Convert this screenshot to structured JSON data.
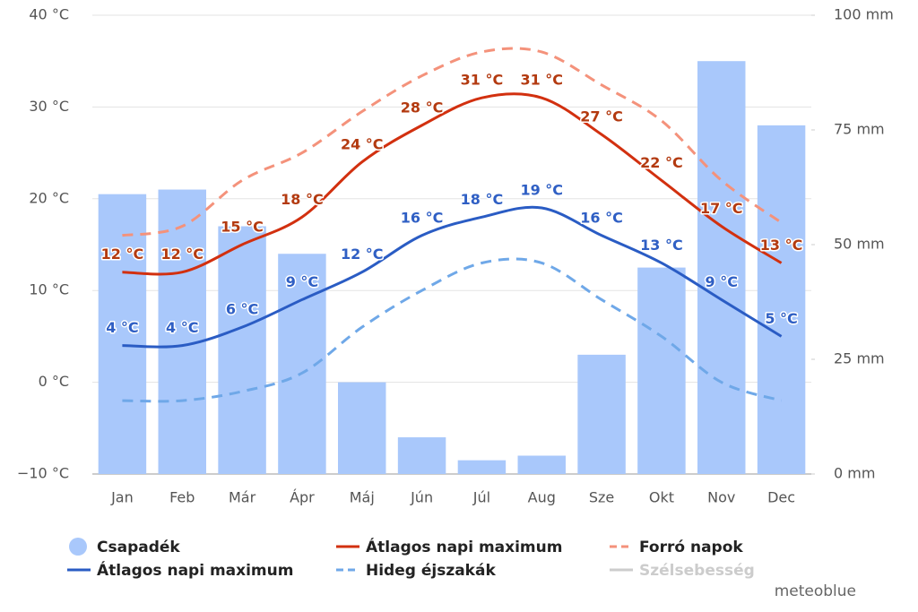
{
  "chart_data": {
    "type": "combo",
    "categories": [
      "Jan",
      "Feb",
      "Már",
      "Ápr",
      "Máj",
      "Jún",
      "Júl",
      "Aug",
      "Sze",
      "Okt",
      "Nov",
      "Dec"
    ],
    "ylim": [
      -10,
      40
    ],
    "yticks": [
      {
        "value": -10,
        "label": "−10 °C"
      },
      {
        "value": 0,
        "label": "0 °C"
      },
      {
        "value": 10,
        "label": "10 °C"
      },
      {
        "value": 20,
        "label": "20 °C"
      },
      {
        "value": 30,
        "label": "30 °C"
      },
      {
        "value": 40,
        "label": "40 °C"
      }
    ],
    "y2lim": [
      0,
      100
    ],
    "y2ticks": [
      {
        "value": 0,
        "label": "0 mm"
      },
      {
        "value": 25,
        "label": "25 mm"
      },
      {
        "value": 50,
        "label": "50 mm"
      },
      {
        "value": 75,
        "label": "75 mm"
      },
      {
        "value": 100,
        "label": "100 mm"
      }
    ],
    "grid": true,
    "series": [
      {
        "name": "Csapadék",
        "type": "bar",
        "axis": "y2",
        "color": "#a9c8fb",
        "values": [
          61,
          62,
          54,
          48,
          20,
          8,
          3,
          4,
          26,
          45,
          90,
          76
        ]
      },
      {
        "name": "Átlagos napi maximum",
        "type": "line",
        "color": "#d2300f",
        "label_color": "#b33a10",
        "values": [
          12,
          12,
          15,
          18,
          24,
          28,
          31,
          31,
          27,
          22,
          17,
          13
        ],
        "value_labels": [
          "12 °C",
          "12 °C",
          "15 °C",
          "18 °C",
          "24 °C",
          "28 °C",
          "31 °C",
          "31 °C",
          "27 °C",
          "22 °C",
          "17 °C",
          "13 °C"
        ]
      },
      {
        "name": "Forró napok",
        "type": "line",
        "dashed": true,
        "color": "#f4927b",
        "values": [
          16,
          17,
          22,
          25,
          29.5,
          33.4,
          36,
          36,
          32.4,
          28.5,
          22,
          17.4
        ]
      },
      {
        "name": "Átlagos napi maximum",
        "type": "line",
        "color": "#2a5cc4",
        "label_color": "#2f5fc4",
        "values": [
          4,
          4,
          6,
          9,
          12,
          16,
          18,
          19,
          16,
          13,
          9,
          5
        ],
        "value_labels": [
          "4 °C",
          "4 °C",
          "6 °C",
          "9 °C",
          "12 °C",
          "16 °C",
          "18 °C",
          "19 °C",
          "16 °C",
          "13 °C",
          "9 °C",
          "5 °C"
        ]
      },
      {
        "name": "Hideg éjszakák",
        "type": "line",
        "dashed": true,
        "color": "#6fa8e8",
        "values": [
          -2,
          -2,
          -1,
          1,
          6,
          10,
          13,
          13,
          9,
          5,
          0,
          -2
        ]
      }
    ],
    "legend_extra": [
      {
        "name": "Szélsebesség",
        "color": "#cccccc"
      }
    ],
    "credit": "meteoblue"
  }
}
